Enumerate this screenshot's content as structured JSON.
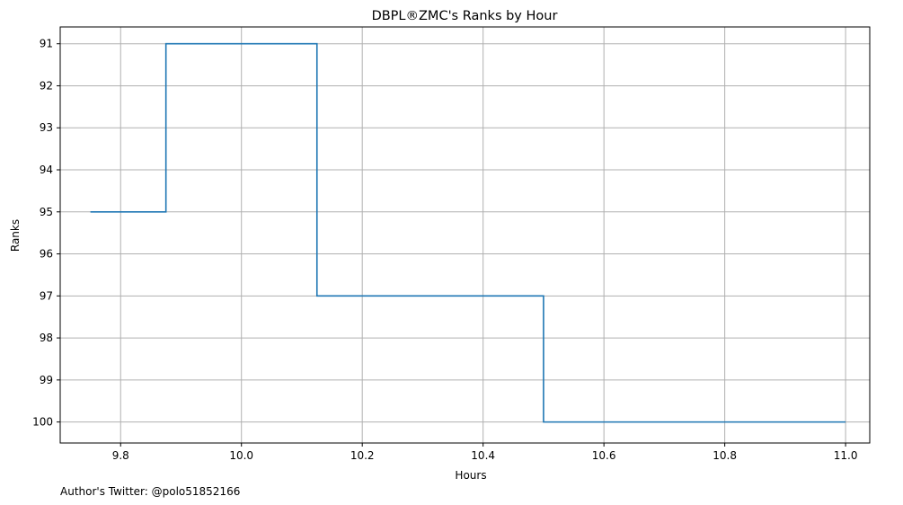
{
  "chart_data": {
    "type": "line",
    "drawstyle": "steps-post",
    "title": "DBPL®ZMC's Ranks by Hour",
    "xlabel": "Hours",
    "ylabel": "Ranks",
    "xlim": [
      9.7,
      11.04
    ],
    "ylim": [
      100.5,
      90.6
    ],
    "y_inverted": true,
    "grid": true,
    "xticks": [
      9.8,
      10.0,
      10.2,
      10.4,
      10.6,
      10.8,
      11.0
    ],
    "xtick_labels": [
      "9.8",
      "10.0",
      "10.2",
      "10.4",
      "10.6",
      "10.8",
      "11.0"
    ],
    "yticks": [
      91,
      92,
      93,
      94,
      95,
      96,
      97,
      98,
      99,
      100
    ],
    "ytick_labels": [
      "91",
      "92",
      "93",
      "94",
      "95",
      "96",
      "97",
      "98",
      "99",
      "100"
    ],
    "series": [
      {
        "color": "#1f77b4",
        "x": [
          9.75,
          9.875,
          10.125,
          10.5,
          11.0
        ],
        "y": [
          95,
          91,
          97,
          100,
          100
        ]
      }
    ]
  },
  "footer": "Author's Twitter: @polo51852166"
}
